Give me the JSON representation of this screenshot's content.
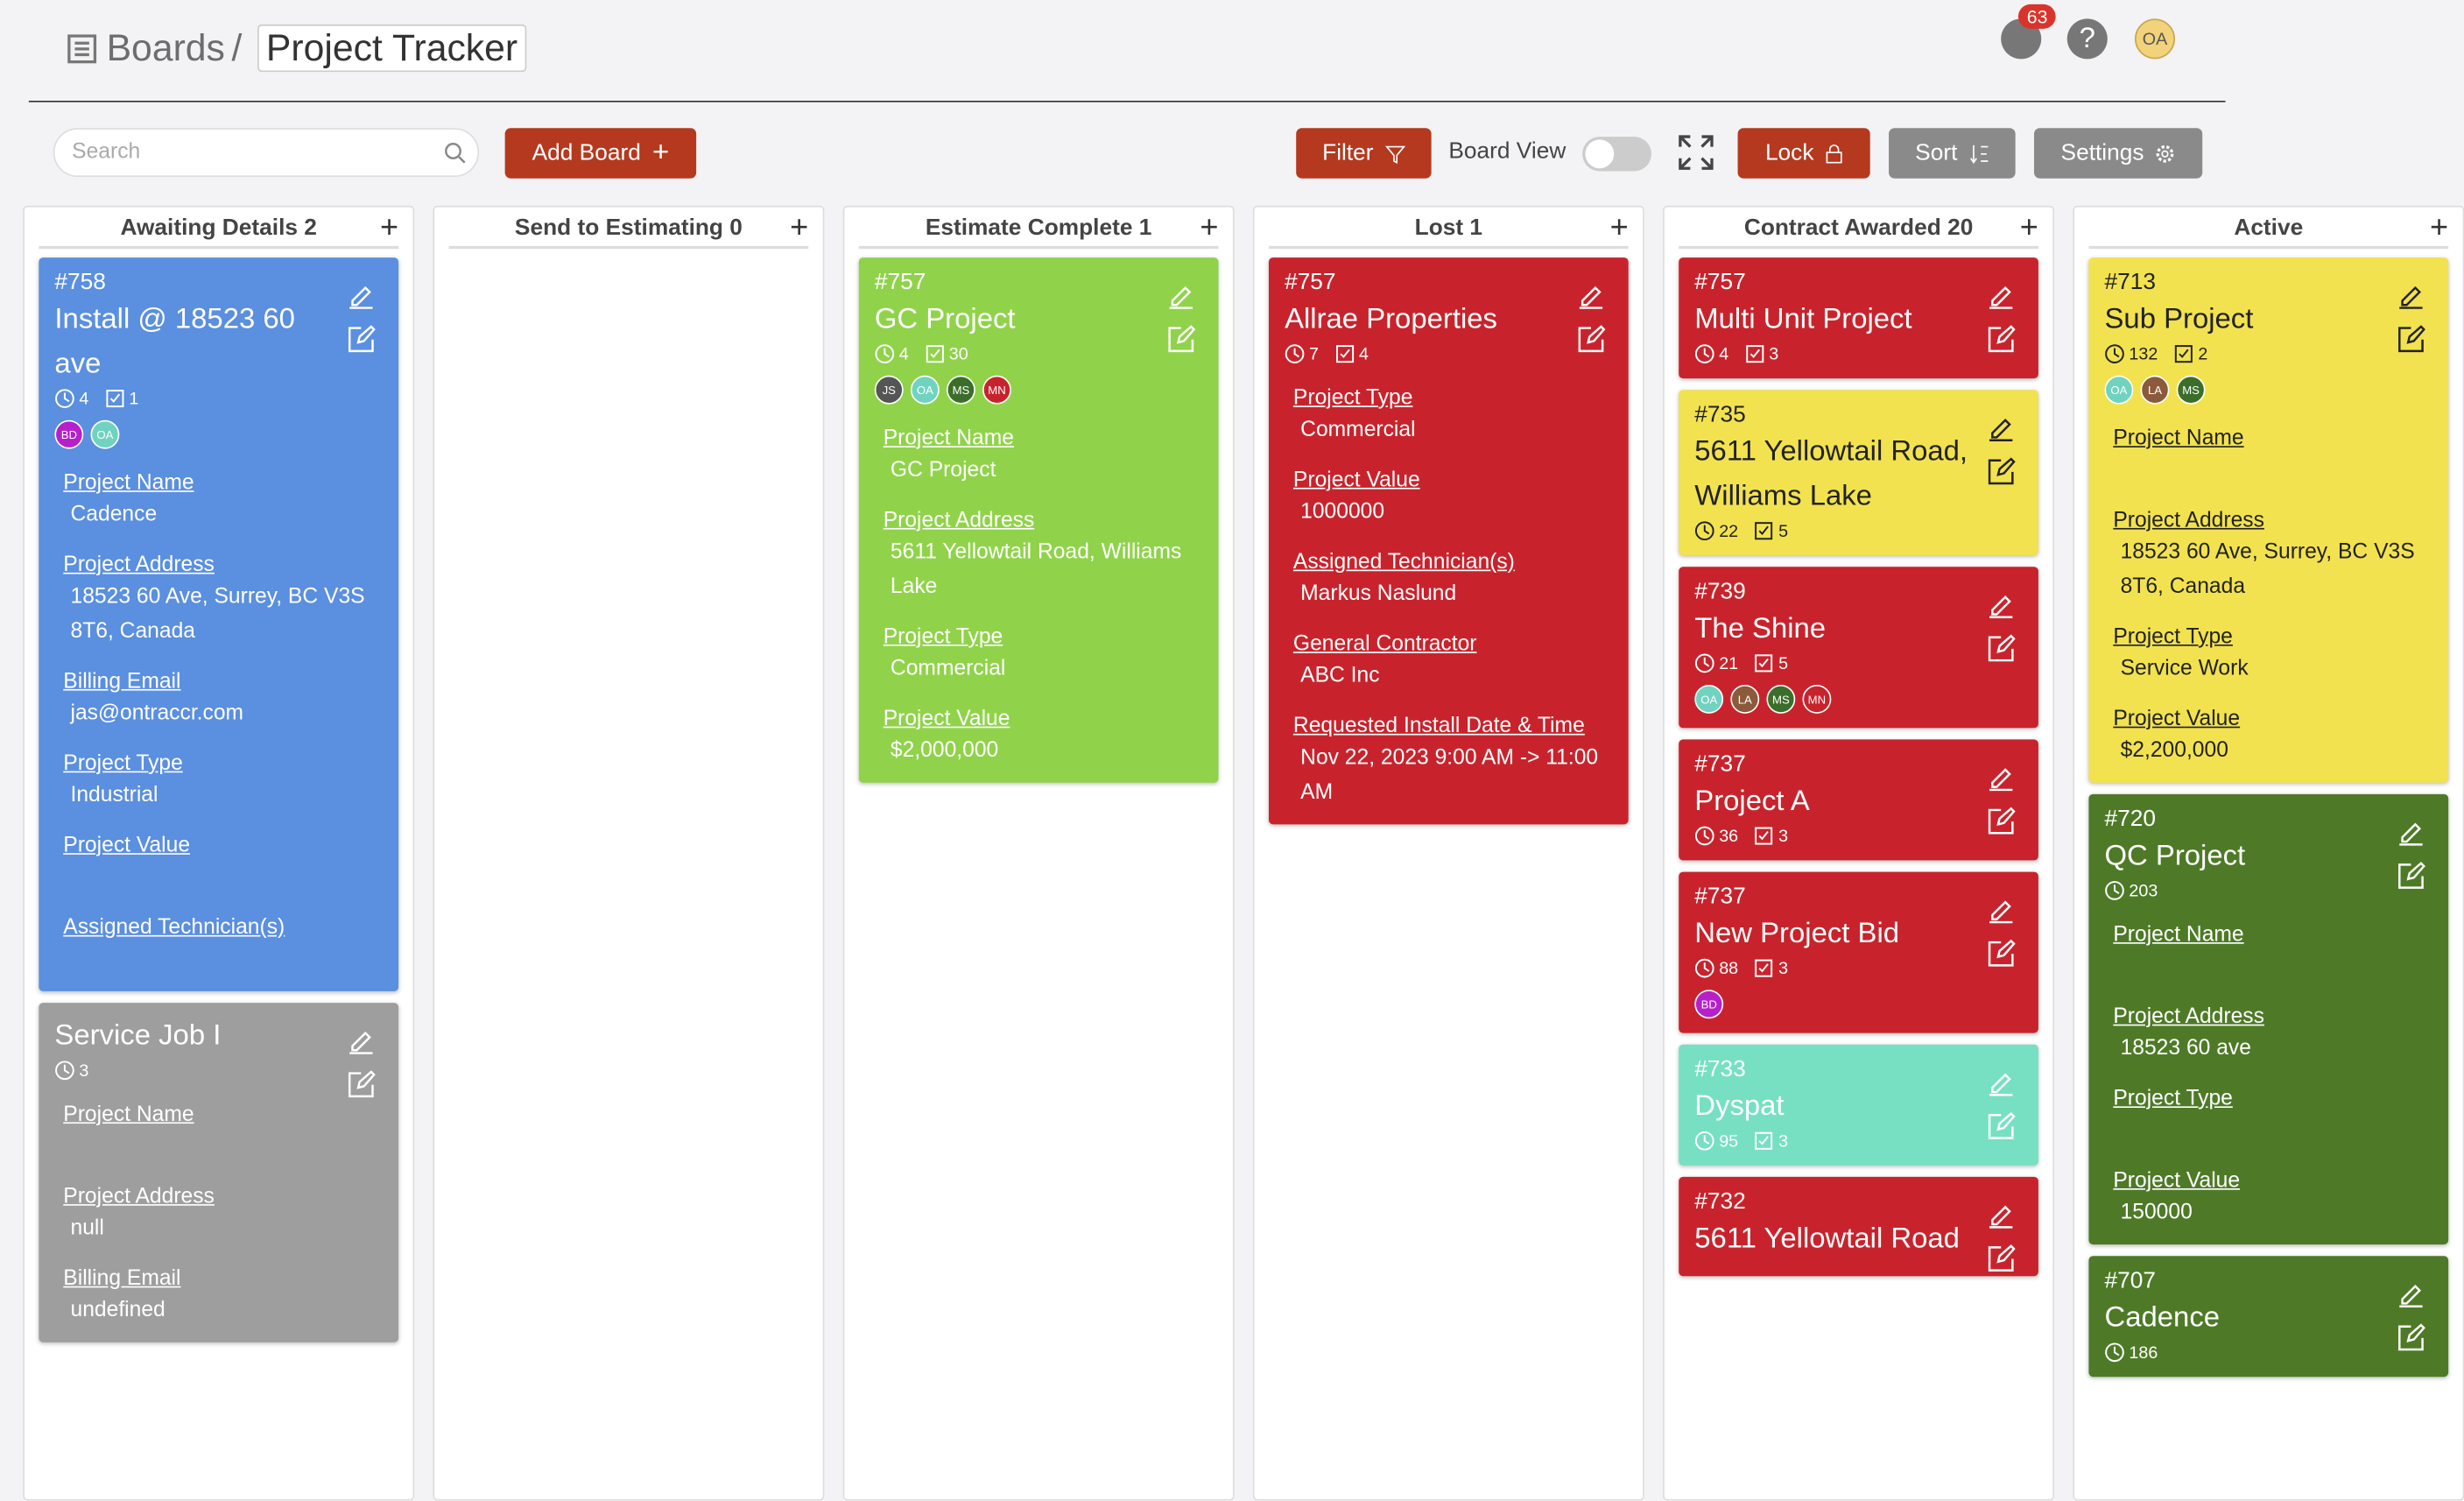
{
  "header": {
    "breadcrumb": "Boards",
    "separator": "/",
    "title": "Project Tracker",
    "notification_count": "63",
    "user_initials": "OA"
  },
  "toolbar": {
    "search_placeholder": "Search",
    "add_board": "Add Board",
    "filter": "Filter",
    "board_view": "Board View",
    "lock": "Lock",
    "sort": "Sort",
    "settings": "Settings"
  },
  "columns": [
    {
      "title": "Awaiting Details 2",
      "cards": [
        {
          "number": "#758",
          "title": "Install @ 18523 60 ave",
          "color": "#5b8fdf",
          "time": "4",
          "tasks": "1",
          "users": [
            {
              "initials": "BD",
              "color": "#b620c9"
            },
            {
              "initials": "OA",
              "color": "#6fd3c0"
            }
          ],
          "fields": [
            {
              "label": "Project Name",
              "value": "Cadence"
            },
            {
              "label": "Project Address",
              "value": "18523 60 Ave, Surrey, BC V3S 8T6, Canada"
            },
            {
              "label": "Billing Email",
              "value": "jas@ontraccr.com"
            },
            {
              "label": "Project Type",
              "value": "Industrial"
            },
            {
              "label": "Project Value"
            },
            {
              "label": "Assigned Technician(s)"
            }
          ]
        },
        {
          "title": "Service Job I",
          "color": "#9e9e9e",
          "time": "3",
          "fields": [
            {
              "label": "Project Name"
            },
            {
              "label": "Project Address",
              "value": "null"
            },
            {
              "label": "Billing Email",
              "value": "undefined"
            }
          ]
        }
      ]
    },
    {
      "title": "Send to Estimating 0",
      "cards": []
    },
    {
      "title": "Estimate Complete 1",
      "cards": [
        {
          "number": "#757",
          "title": "GC Project",
          "color": "#90d34a",
          "time": "4",
          "tasks": "30",
          "users": [
            {
              "initials": "JS",
              "color": "#555555"
            },
            {
              "initials": "OA",
              "color": "#6fd3c0"
            },
            {
              "initials": "MS",
              "color": "#3b6e2a"
            },
            {
              "initials": "MN",
              "color": "#c8232c"
            }
          ],
          "fields": [
            {
              "label": "Project Name",
              "value": "GC Project"
            },
            {
              "label": "Project Address",
              "value": "5611 Yellowtail Road, Williams Lake"
            },
            {
              "label": "Project Type",
              "value": "Commercial"
            },
            {
              "label": "Project Value",
              "value": "$2,000,000"
            }
          ]
        }
      ]
    },
    {
      "title": "Lost 1",
      "cards": [
        {
          "number": "#757",
          "title": "Allrae Properties",
          "color": "#c8232c",
          "time": "7",
          "tasks": "4",
          "fields": [
            {
              "label": "Project Type",
              "value": "Commercial"
            },
            {
              "label": "Project Value",
              "value": "1000000"
            },
            {
              "label": "Assigned Technician(s)",
              "value": "Markus Naslund"
            },
            {
              "label": "General Contractor",
              "value": "ABC Inc"
            },
            {
              "label": "Requested Install Date & Time",
              "value": "Nov 22, 2023 9:00 AM -> 11:00 AM"
            }
          ]
        }
      ]
    },
    {
      "title": "Contract Awarded 20",
      "cards": [
        {
          "number": "#757",
          "title": "Multi Unit Project",
          "color": "#c8232c",
          "time": "4",
          "tasks": "3"
        },
        {
          "number": "#735",
          "title": "5611 Yellowtail Road, Williams Lake",
          "color": "#f2e24f",
          "dark": true,
          "time": "22",
          "tasks": "5"
        },
        {
          "number": "#739",
          "title": "The Shine",
          "color": "#c8232c",
          "time": "21",
          "tasks": "5",
          "users": [
            {
              "initials": "OA",
              "color": "#6fd3c0"
            },
            {
              "initials": "LA",
              "color": "#8a5a3a"
            },
            {
              "initials": "MS",
              "color": "#3b6e2a"
            },
            {
              "initials": "MN",
              "color": "#c8232c"
            }
          ]
        },
        {
          "number": "#737",
          "title": "Project A",
          "color": "#c8232c",
          "time": "36",
          "tasks": "3"
        },
        {
          "number": "#737",
          "title": "New Project Bid",
          "color": "#c8232c",
          "time": "88",
          "tasks": "3",
          "users": [
            {
              "initials": "BD",
              "color": "#b620c9"
            }
          ]
        },
        {
          "number": "#733",
          "title": "Dyspat",
          "color": "#77e0c2",
          "time": "95",
          "tasks": "3"
        },
        {
          "number": "#732",
          "title": "5611 Yellowtail Road",
          "color": "#c8232c"
        }
      ]
    },
    {
      "title": "Active",
      "cards": [
        {
          "number": "#713",
          "title": "Sub Project",
          "color": "#f2e24f",
          "dark": true,
          "time": "132",
          "tasks": "2",
          "users": [
            {
              "initials": "OA",
              "color": "#6fd3c0"
            },
            {
              "initials": "LA",
              "color": "#8a5a3a"
            },
            {
              "initials": "MS",
              "color": "#3b6e2a"
            }
          ],
          "fields": [
            {
              "label": "Project Name"
            },
            {
              "label": "Project Address",
              "value": "18523 60 Ave, Surrey, BC V3S 8T6, Canada"
            },
            {
              "label": "Project Type",
              "value": "Service Work"
            },
            {
              "label": "Project Value",
              "value": "$2,200,000"
            }
          ]
        },
        {
          "number": "#720",
          "title": "QC Project",
          "color": "#4e7a27",
          "time": "203",
          "fields": [
            {
              "label": "Project Name"
            },
            {
              "label": "Project Address",
              "value": "18523 60 ave"
            },
            {
              "label": "Project Type"
            },
            {
              "label": "Project Value",
              "value": "150000"
            }
          ]
        },
        {
          "number": "#707",
          "title": "Cadence",
          "color": "#4e7a27",
          "time": "186"
        }
      ]
    }
  ]
}
